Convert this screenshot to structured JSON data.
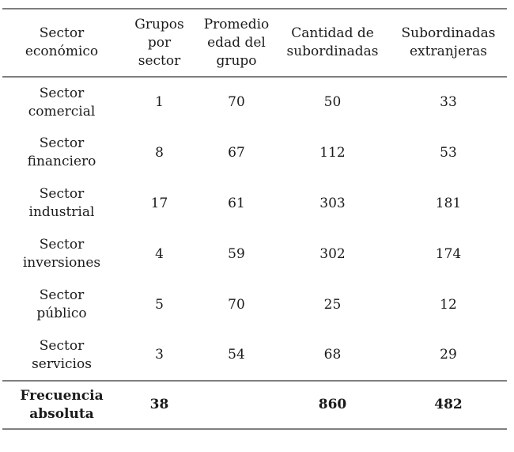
{
  "colors": {
    "background": "#ffffff",
    "text": "#1b1b1b",
    "rule": "#7f7f7f"
  },
  "table": {
    "headers": [
      "Sector\neconómico",
      "Grupos\npor\nsector",
      "Promedio\nedad del\ngrupo",
      "Cantidad de\nsubordinadas",
      "Subordinadas\nextranjeras"
    ],
    "rows": [
      {
        "sector": "Sector\ncomercial",
        "grupos": "1",
        "promedio": "70",
        "cantidad": "50",
        "extranjeras": "33"
      },
      {
        "sector": "Sector\nfinanciero",
        "grupos": "8",
        "promedio": "67",
        "cantidad": "112",
        "extranjeras": "53"
      },
      {
        "sector": "Sector\nindustrial",
        "grupos": "17",
        "promedio": "61",
        "cantidad": "303",
        "extranjeras": "181"
      },
      {
        "sector": "Sector\ninversiones",
        "grupos": "4",
        "promedio": "59",
        "cantidad": "302",
        "extranjeras": "174"
      },
      {
        "sector": "Sector\npúblico",
        "grupos": "5",
        "promedio": "70",
        "cantidad": "25",
        "extranjeras": "12"
      },
      {
        "sector": "Sector\nservicios",
        "grupos": "3",
        "promedio": "54",
        "cantidad": "68",
        "extranjeras": "29"
      }
    ],
    "footer": {
      "label": "Frecuencia\nabsoluta",
      "grupos": "38",
      "promedio": "",
      "cantidad": "860",
      "extranjeras": "482"
    }
  },
  "chart_data": {
    "type": "table",
    "columns": [
      "Sector económico",
      "Grupos por sector",
      "Promedio edad del grupo",
      "Cantidad de subordinadas",
      "Subordinadas extranjeras"
    ],
    "rows": [
      [
        "Sector comercial",
        1,
        70,
        50,
        33
      ],
      [
        "Sector financiero",
        8,
        67,
        112,
        53
      ],
      [
        "Sector industrial",
        17,
        61,
        303,
        181
      ],
      [
        "Sector inversiones",
        4,
        59,
        302,
        174
      ],
      [
        "Sector público",
        5,
        70,
        25,
        12
      ],
      [
        "Sector servicios",
        3,
        54,
        68,
        29
      ]
    ],
    "totals_row": [
      "Frecuencia absoluta",
      38,
      null,
      860,
      482
    ]
  }
}
